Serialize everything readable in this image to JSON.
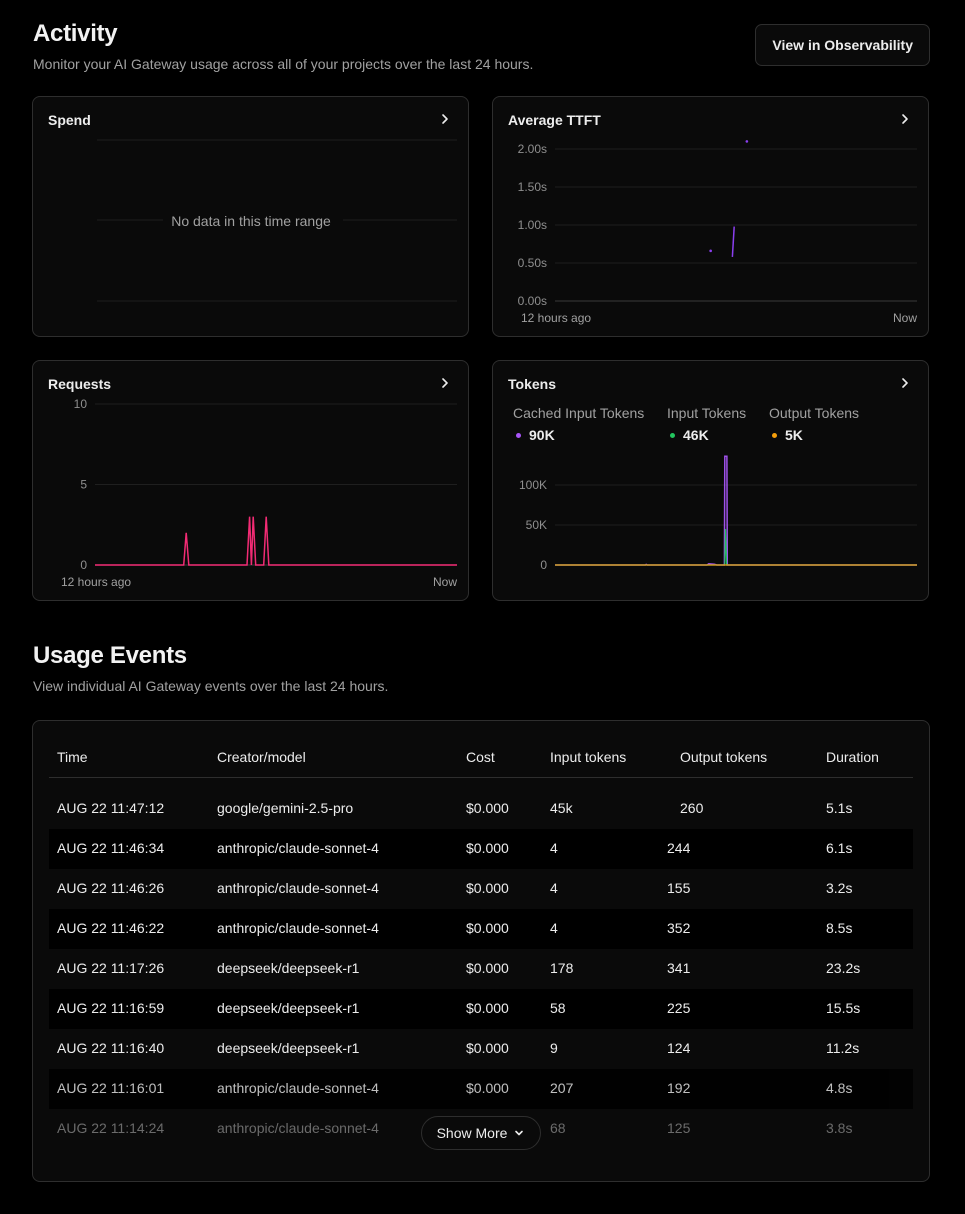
{
  "header": {
    "title": "Activity",
    "subtitle": "Monitor your AI Gateway usage across all of your projects over the last 24 hours.",
    "observability_button": "View in Observability"
  },
  "cards": {
    "spend": {
      "title": "Spend",
      "empty_text": "No data in this time range"
    },
    "ttft": {
      "title": "Average TTFT",
      "x_start": "12 hours ago",
      "x_end": "Now"
    },
    "requests": {
      "title": "Requests",
      "x_start": "12 hours ago",
      "x_end": "Now"
    },
    "tokens": {
      "title": "Tokens",
      "legend": [
        {
          "name": "Cached Input Tokens",
          "value": "90K",
          "color": "#a855f7"
        },
        {
          "name": "Input Tokens",
          "value": "46K",
          "color": "#22c55e"
        },
        {
          "name": "Output Tokens",
          "value": "5K",
          "color": "#f59e0b"
        }
      ]
    }
  },
  "chart_data": [
    {
      "type": "line",
      "title": "Average TTFT",
      "y_ticks": [
        "2.00s",
        "1.50s",
        "1.00s",
        "0.50s",
        "0.00s"
      ],
      "ylim": [
        0,
        2
      ],
      "x_range": [
        "12 hours ago",
        "Now"
      ],
      "grid": true,
      "series": [
        {
          "values": [
            {
              "x": 0.43,
              "y": 0.66
            },
            {
              "x": 0.49,
              "y": 0.58
            },
            {
              "x": 0.495,
              "y": 0.98
            },
            {
              "x": 0.53,
              "y": 2.1
            }
          ],
          "color": "#8b3ff0"
        }
      ]
    },
    {
      "type": "line",
      "title": "Requests",
      "y_ticks": [
        "10",
        "5",
        "0"
      ],
      "ylim": [
        0,
        10
      ],
      "x_range": [
        "12 hours ago",
        "Now"
      ],
      "grid": true,
      "series": [
        {
          "values": [
            {
              "x": 0,
              "y": 0
            },
            {
              "x": 0.245,
              "y": 0
            },
            {
              "x": 0.252,
              "y": 2
            },
            {
              "x": 0.259,
              "y": 0
            },
            {
              "x": 0.42,
              "y": 0
            },
            {
              "x": 0.427,
              "y": 3
            },
            {
              "x": 0.432,
              "y": 0
            },
            {
              "x": 0.437,
              "y": 3
            },
            {
              "x": 0.444,
              "y": 0
            },
            {
              "x": 0.466,
              "y": 0
            },
            {
              "x": 0.473,
              "y": 3
            },
            {
              "x": 0.48,
              "y": 0
            },
            {
              "x": 1,
              "y": 0
            }
          ],
          "color": "#ff2d7a"
        }
      ]
    },
    {
      "type": "line",
      "title": "Tokens",
      "y_ticks": [
        "100K",
        "50K",
        "0"
      ],
      "ylim": [
        0,
        140000
      ],
      "grid": true,
      "series": [
        {
          "name": "Cached Input Tokens",
          "values": [
            {
              "x": 0,
              "y": 0
            },
            {
              "x": 0.25,
              "y": 0
            },
            {
              "x": 0.252,
              "y": 800
            },
            {
              "x": 0.255,
              "y": 0
            },
            {
              "x": 0.42,
              "y": 0
            },
            {
              "x": 0.425,
              "y": 1500
            },
            {
              "x": 0.44,
              "y": 1000
            },
            {
              "x": 0.447,
              "y": 0
            },
            {
              "x": 0.468,
              "y": 0
            },
            {
              "x": 0.469,
              "y": 136000
            },
            {
              "x": 0.475,
              "y": 136000
            },
            {
              "x": 0.476,
              "y": 0
            },
            {
              "x": 1,
              "y": 0
            }
          ],
          "color": "#a855f7"
        },
        {
          "name": "Input Tokens",
          "values": [
            {
              "x": 0,
              "y": 0
            },
            {
              "x": 0.469,
              "y": 0
            },
            {
              "x": 0.471,
              "y": 45000
            },
            {
              "x": 0.474,
              "y": 0
            },
            {
              "x": 1,
              "y": 0
            }
          ],
          "color": "#22c55e"
        },
        {
          "name": "Output Tokens",
          "values": [
            {
              "x": 0,
              "y": 0
            },
            {
              "x": 1,
              "y": 0
            }
          ],
          "color": "#f59e0b"
        }
      ]
    }
  ],
  "usage": {
    "title": "Usage Events",
    "subtitle": "View individual AI Gateway events over the last 24 hours.",
    "columns": [
      "Time",
      "Creator/model",
      "Cost",
      "Input tokens",
      "Output tokens",
      "Duration"
    ],
    "rows": [
      [
        "AUG 22 11:47:12",
        "google/gemini-2.5-pro",
        "$0.000",
        "45k",
        "260",
        "5.1s"
      ],
      [
        "AUG 22 11:46:34",
        "anthropic/claude-sonnet-4",
        "$0.000",
        "4",
        "244",
        "6.1s"
      ],
      [
        "AUG 22 11:46:26",
        "anthropic/claude-sonnet-4",
        "$0.000",
        "4",
        "155",
        "3.2s"
      ],
      [
        "AUG 22 11:46:22",
        "anthropic/claude-sonnet-4",
        "$0.000",
        "4",
        "352",
        "8.5s"
      ],
      [
        "AUG 22 11:17:26",
        "deepseek/deepseek-r1",
        "$0.000",
        "178",
        "341",
        "23.2s"
      ],
      [
        "AUG 22 11:16:59",
        "deepseek/deepseek-r1",
        "$0.000",
        "58",
        "225",
        "15.5s"
      ],
      [
        "AUG 22 11:16:40",
        "deepseek/deepseek-r1",
        "$0.000",
        "9",
        "124",
        "11.2s"
      ],
      [
        "AUG 22 11:16:01",
        "anthropic/claude-sonnet-4",
        "$0.000",
        "207",
        "192",
        "4.8s"
      ],
      [
        "AUG 22 11:14:24",
        "anthropic/claude-sonnet-4",
        "",
        "68",
        "125",
        "3.8s"
      ]
    ],
    "show_more": "Show More"
  }
}
